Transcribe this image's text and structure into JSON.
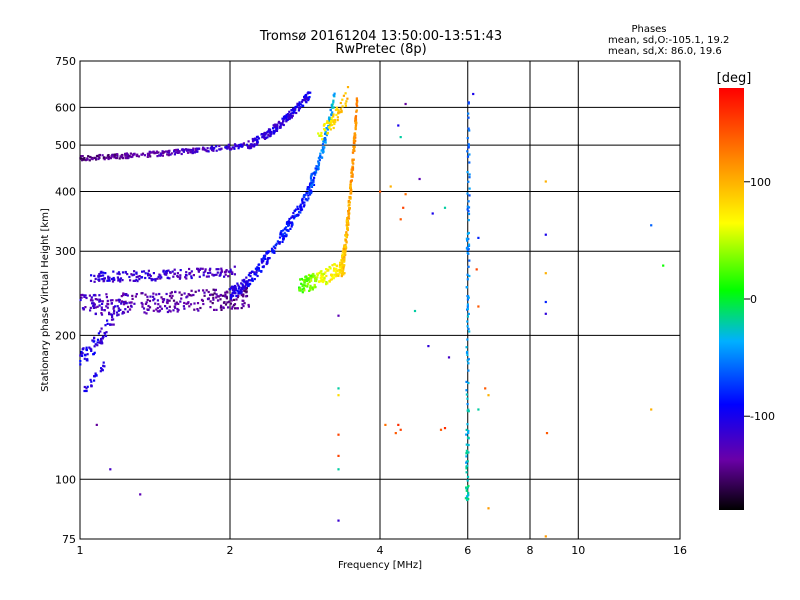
{
  "chart_data": {
    "type": "scatter",
    "title": "Tromsø 20161204 13:50:00-13:51:43",
    "subtitle": "RwPretec (8p)",
    "xlabel": "Frequency [MHz]",
    "ylabel": "Stationary phase Virtual Height [km]",
    "x_scale": "log",
    "y_scale": "log",
    "xlim": [
      1,
      16
    ],
    "ylim": [
      75,
      750
    ],
    "x_ticks": [
      1,
      2,
      4,
      6,
      8,
      10,
      16
    ],
    "x_tick_labels": [
      "1",
      "2",
      "4",
      "6",
      "8",
      "10",
      "16"
    ],
    "y_ticks": [
      75,
      100,
      200,
      300,
      400,
      500,
      600,
      750
    ],
    "y_tick_labels": [
      "75",
      "100",
      "200",
      "300",
      "400",
      "500",
      "600",
      "750"
    ],
    "grid": true,
    "stats": {
      "heading": "Phases",
      "line_o": "mean, sd,O:-105.1, 19.2",
      "line_x": "mean, sd,X:  86.0, 19.6"
    },
    "colorbar": {
      "label": "[deg]",
      "range": [
        -180,
        180
      ],
      "ticks": [
        100,
        0,
        -100
      ],
      "tick_labels": [
        "100",
        "0",
        "-100"
      ]
    },
    "traces": [
      {
        "x_range": [
          1.0,
          2.15
        ],
        "h_start": 470,
        "h_end": 500,
        "ph_start": -150,
        "ph_end": -110,
        "count": 260,
        "spread": 0.012,
        "stepx": 0.0
      },
      {
        "x_range": [
          2.15,
          2.9
        ],
        "h_start": 500,
        "h_end": 640,
        "ph_start": -115,
        "ph_end": -100,
        "count": 200,
        "spread": 0.02,
        "stepx": 0.0
      },
      {
        "x_range": [
          1.0,
          2.2
        ],
        "h_start": 232,
        "h_end": 240,
        "ph_start": -120,
        "ph_end": -145,
        "count": 300,
        "spread": 0.05,
        "stepx": 0.0
      },
      {
        "x_range": [
          1.05,
          2.05
        ],
        "h_start": 265,
        "h_end": 272,
        "ph_start": -110,
        "ph_end": -125,
        "count": 180,
        "spread": 0.025,
        "stepx": 0.0
      },
      {
        "x_range": [
          2.0,
          2.95
        ],
        "h_start": 245,
        "h_end": 420,
        "ph_start": -105,
        "ph_end": -80,
        "count": 260,
        "spread": 0.03,
        "stepx": 0.0
      },
      {
        "x_range": [
          2.9,
          3.25
        ],
        "h_start": 420,
        "h_end": 640,
        "ph_start": -70,
        "ph_end": -30,
        "count": 110,
        "spread": 0.03,
        "stepx": 0.0
      },
      {
        "x_range": [
          1.0,
          1.2
        ],
        "h_start": 180,
        "h_end": 230,
        "ph_start": -100,
        "ph_end": -115,
        "count": 80,
        "spread": 0.04,
        "stepx": 0.0
      },
      {
        "x_range": [
          1.02,
          1.12
        ],
        "h_start": 155,
        "h_end": 175,
        "ph_start": -100,
        "ph_end": -105,
        "count": 25,
        "spread": 0.02,
        "stepx": 0.0
      },
      {
        "x_range": [
          2.75,
          3.4
        ],
        "h_start": 255,
        "h_end": 280,
        "ph_start": 20,
        "ph_end": 90,
        "count": 170,
        "spread": 0.04,
        "stepx": 0.0
      },
      {
        "x_range": [
          3.35,
          3.6
        ],
        "h_start": 280,
        "h_end": 620,
        "ph_start": 90,
        "ph_end": 120,
        "count": 220,
        "spread": 0.05,
        "stepx": 0.0
      },
      {
        "x_range": [
          3.0,
          3.45
        ],
        "h_start": 520,
        "h_end": 640,
        "ph_start": 60,
        "ph_end": 100,
        "count": 60,
        "spread": 0.04,
        "stepx": 0.0
      },
      {
        "x_range": [
          5.98,
          6.02
        ],
        "h_start": 90,
        "h_end": 620,
        "ph_start": -20,
        "ph_end": -60,
        "count": 120,
        "spread": 0.0,
        "stepx": 0.006
      }
    ],
    "scatter_points": [
      {
        "x": 1.32,
        "y": 93,
        "phase": -130
      },
      {
        "x": 1.15,
        "y": 105,
        "phase": -120
      },
      {
        "x": 1.08,
        "y": 130,
        "phase": -140
      },
      {
        "x": 3.3,
        "y": 82,
        "phase": -115
      },
      {
        "x": 3.3,
        "y": 105,
        "phase": -20
      },
      {
        "x": 3.3,
        "y": 112,
        "phase": 150
      },
      {
        "x": 3.3,
        "y": 124,
        "phase": 150
      },
      {
        "x": 3.3,
        "y": 150,
        "phase": 80
      },
      {
        "x": 3.3,
        "y": 155,
        "phase": -20
      },
      {
        "x": 3.3,
        "y": 220,
        "phase": -130
      },
      {
        "x": 4.1,
        "y": 130,
        "phase": 130
      },
      {
        "x": 4.3,
        "y": 125,
        "phase": 140
      },
      {
        "x": 4.35,
        "y": 130,
        "phase": 160
      },
      {
        "x": 4.4,
        "y": 127,
        "phase": 150
      },
      {
        "x": 4.4,
        "y": 350,
        "phase": 140
      },
      {
        "x": 4.45,
        "y": 370,
        "phase": 150
      },
      {
        "x": 4.35,
        "y": 550,
        "phase": -100
      },
      {
        "x": 4.4,
        "y": 520,
        "phase": -20
      },
      {
        "x": 4.5,
        "y": 395,
        "phase": 130
      },
      {
        "x": 4.0,
        "y": 400,
        "phase": 140
      },
      {
        "x": 4.2,
        "y": 410,
        "phase": 100
      },
      {
        "x": 4.8,
        "y": 425,
        "phase": -130
      },
      {
        "x": 4.7,
        "y": 225,
        "phase": -20
      },
      {
        "x": 5.0,
        "y": 190,
        "phase": -110
      },
      {
        "x": 5.1,
        "y": 360,
        "phase": -100
      },
      {
        "x": 5.3,
        "y": 127,
        "phase": 140
      },
      {
        "x": 5.4,
        "y": 128,
        "phase": 160
      },
      {
        "x": 5.4,
        "y": 370,
        "phase": -20
      },
      {
        "x": 5.5,
        "y": 180,
        "phase": -120
      },
      {
        "x": 4.5,
        "y": 610,
        "phase": -140
      },
      {
        "x": 6.15,
        "y": 640,
        "phase": -100
      },
      {
        "x": 6.25,
        "y": 275,
        "phase": 150
      },
      {
        "x": 6.3,
        "y": 230,
        "phase": 140
      },
      {
        "x": 6.3,
        "y": 320,
        "phase": -80
      },
      {
        "x": 6.3,
        "y": 140,
        "phase": -20
      },
      {
        "x": 6.5,
        "y": 155,
        "phase": 140
      },
      {
        "x": 6.6,
        "y": 150,
        "phase": 100
      },
      {
        "x": 6.6,
        "y": 87,
        "phase": 110
      },
      {
        "x": 8.6,
        "y": 420,
        "phase": 100
      },
      {
        "x": 8.6,
        "y": 325,
        "phase": -100
      },
      {
        "x": 8.6,
        "y": 270,
        "phase": 100
      },
      {
        "x": 8.6,
        "y": 235,
        "phase": -80
      },
      {
        "x": 8.6,
        "y": 222,
        "phase": -110
      },
      {
        "x": 8.65,
        "y": 125,
        "phase": 140
      },
      {
        "x": 8.6,
        "y": 76,
        "phase": 110
      },
      {
        "x": 14.0,
        "y": 340,
        "phase": -60
      },
      {
        "x": 14.8,
        "y": 280,
        "phase": 10
      },
      {
        "x": 14.0,
        "y": 140,
        "phase": 100
      }
    ]
  }
}
